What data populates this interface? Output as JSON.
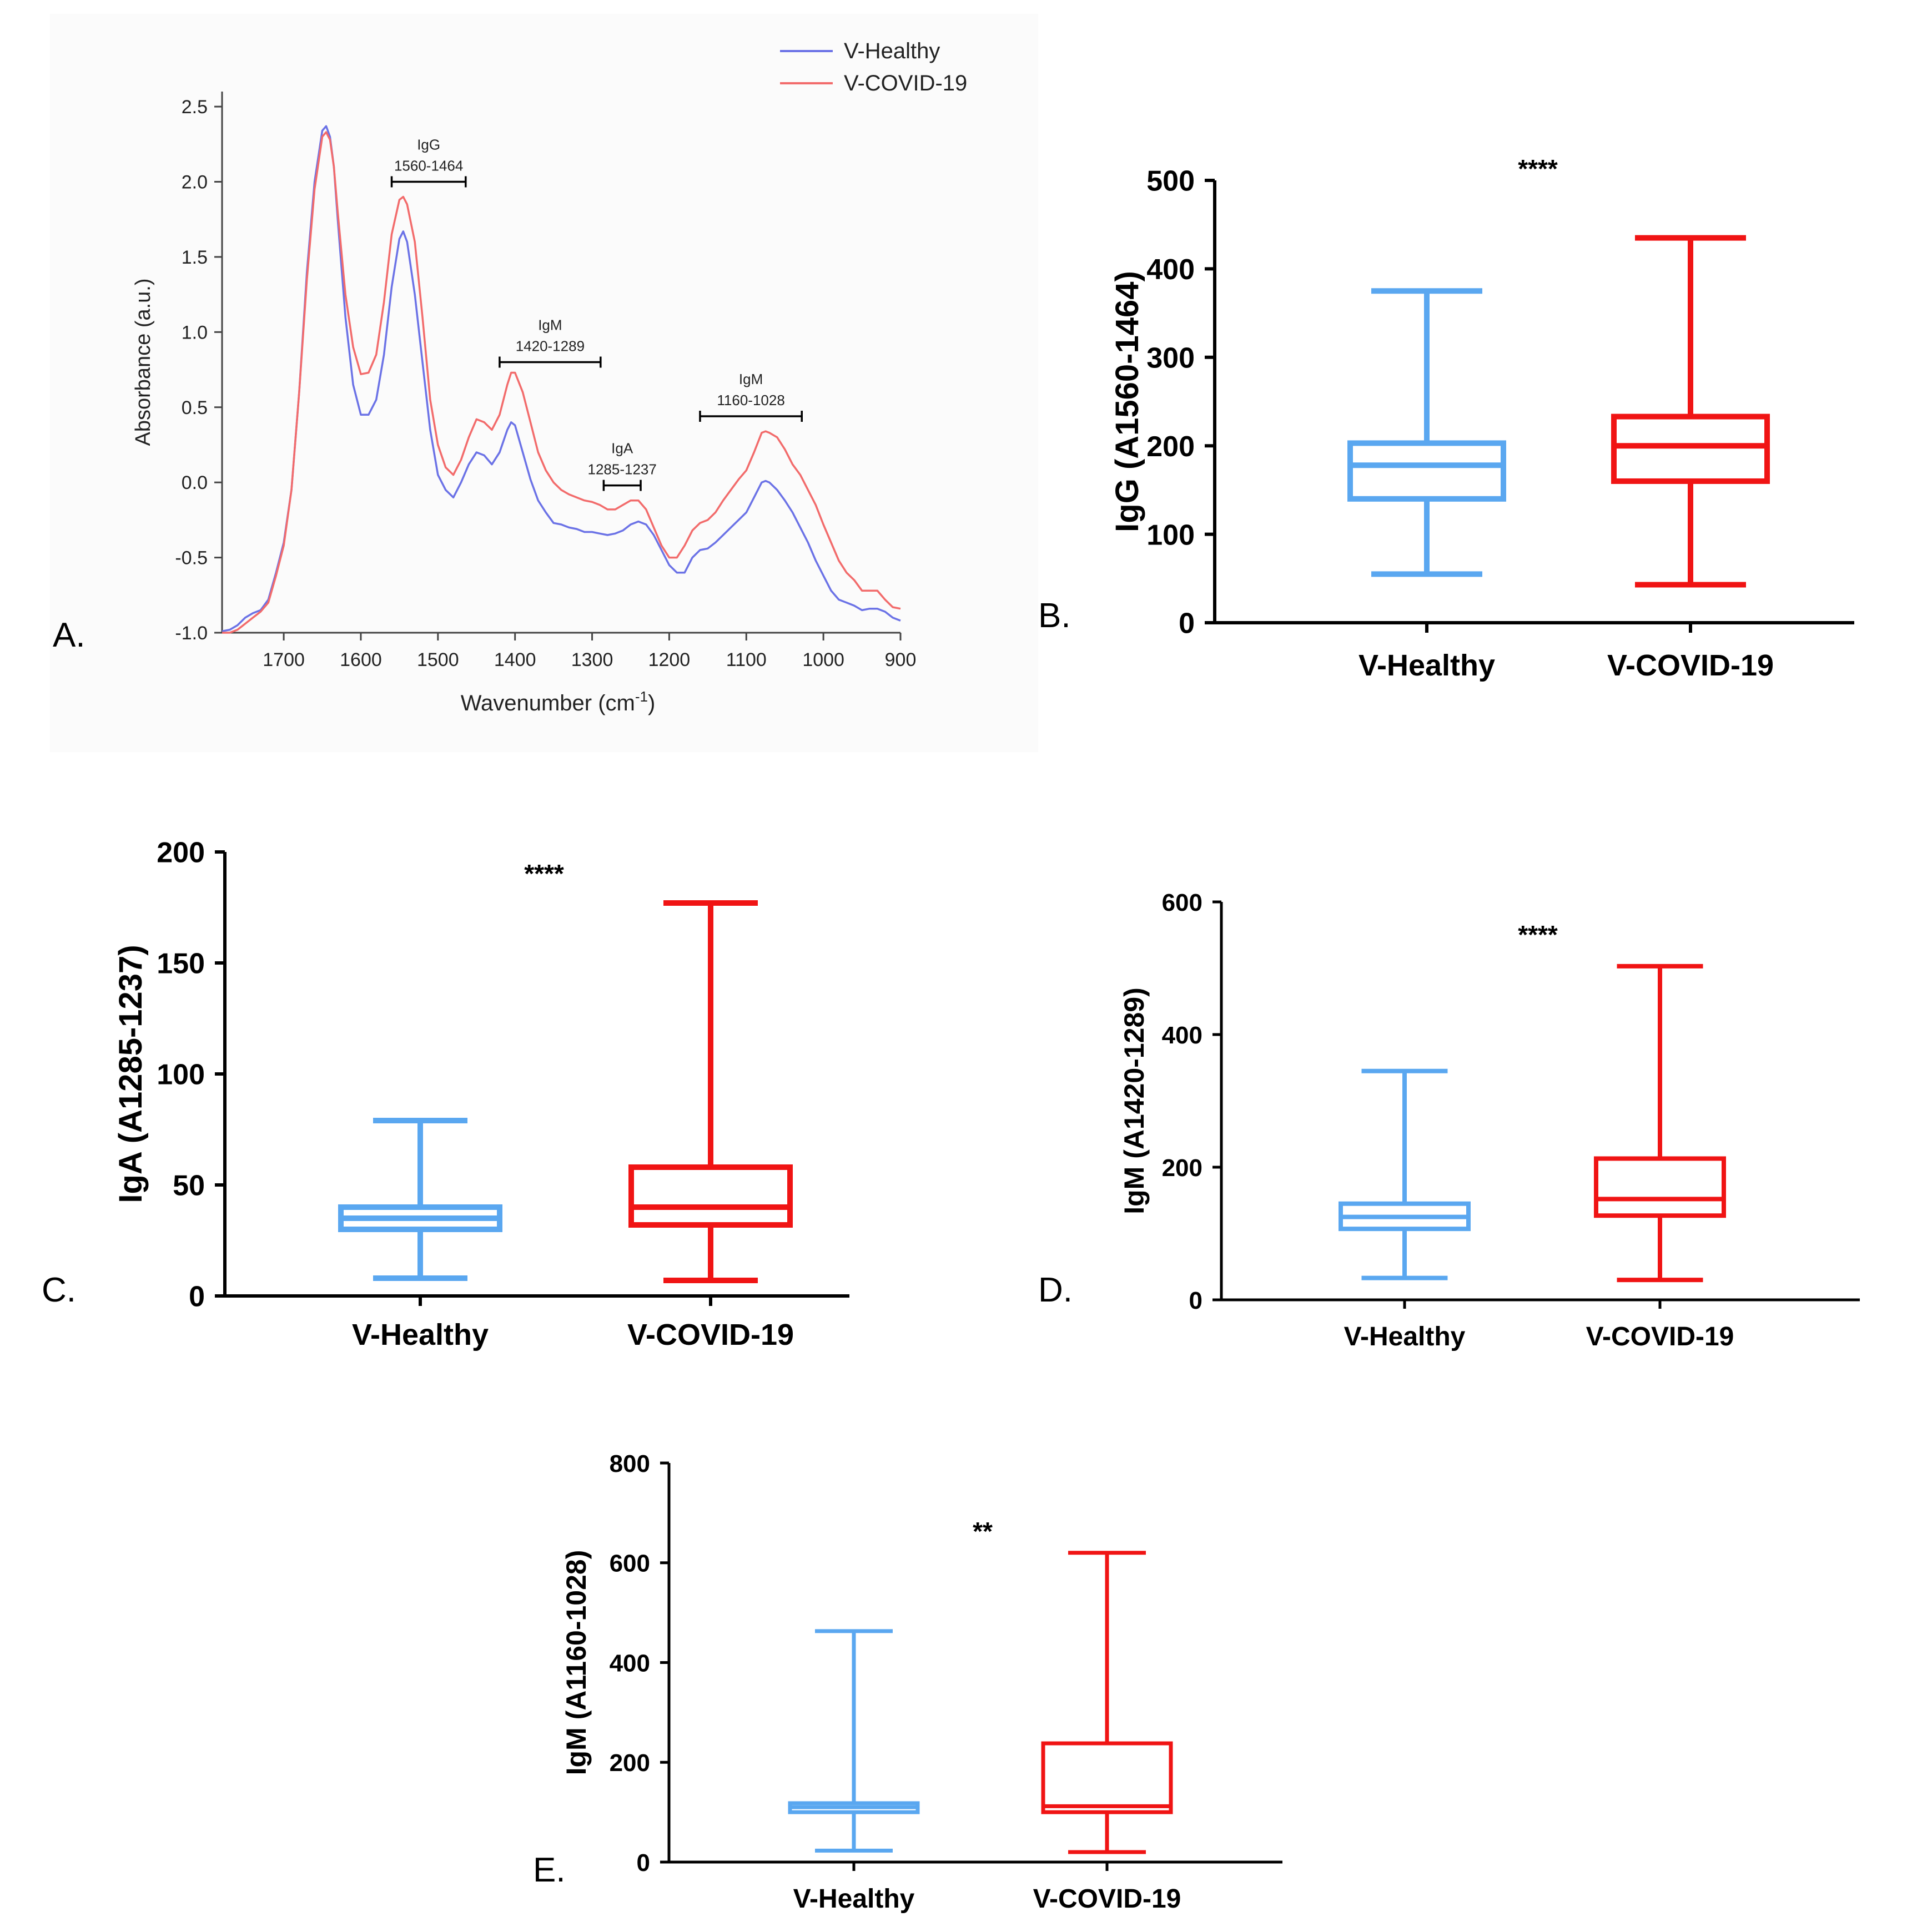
{
  "colors": {
    "healthy_line": "#6b72e6",
    "covid_line": "#f26b6b",
    "healthy_box": "#5aa7f0",
    "covid_box": "#f01414",
    "axis": "#000000",
    "panelA_axis": "#444444"
  },
  "chart_data": [
    {
      "panel": "A.",
      "type": "line",
      "title": "",
      "xlabel": "Wavenumber (cm",
      "xlabel_sup": "-1",
      "xlabel_close": ")",
      "ylabel": "Absorbance (a.u.)",
      "xlim": [
        1780,
        900
      ],
      "ylim": [
        -1.0,
        2.6
      ],
      "x_ticks": [
        1700,
        1600,
        1500,
        1400,
        1300,
        1200,
        1100,
        1000,
        900
      ],
      "y_ticks": [
        -1.0,
        -0.5,
        0.0,
        0.5,
        1.0,
        1.5,
        2.0,
        2.5
      ],
      "x_tick_labels": [
        "1700",
        "1600",
        "1500",
        "1400",
        "1300",
        "1200",
        "1100",
        "1000",
        "900"
      ],
      "y_tick_labels": [
        "-1.0",
        "-0.5",
        "0.0",
        "0.5",
        "1.0",
        "1.5",
        "2.0",
        "2.5"
      ],
      "legend": [
        "V-Healthy",
        "V-COVID-19"
      ],
      "legend_position": "top-right",
      "series": [
        {
          "name": "V-Healthy",
          "x": [
            1780,
            1770,
            1760,
            1750,
            1740,
            1730,
            1720,
            1710,
            1700,
            1690,
            1680,
            1670,
            1660,
            1650,
            1645,
            1640,
            1635,
            1630,
            1620,
            1610,
            1600,
            1590,
            1580,
            1570,
            1560,
            1550,
            1545,
            1540,
            1530,
            1520,
            1510,
            1500,
            1490,
            1480,
            1470,
            1460,
            1450,
            1440,
            1430,
            1420,
            1410,
            1405,
            1400,
            1390,
            1380,
            1370,
            1360,
            1350,
            1340,
            1330,
            1320,
            1310,
            1300,
            1290,
            1280,
            1270,
            1260,
            1250,
            1240,
            1230,
            1220,
            1210,
            1200,
            1190,
            1180,
            1170,
            1160,
            1150,
            1140,
            1130,
            1120,
            1110,
            1100,
            1090,
            1080,
            1075,
            1070,
            1060,
            1050,
            1040,
            1030,
            1020,
            1010,
            1000,
            990,
            980,
            970,
            960,
            950,
            940,
            930,
            920,
            910,
            900
          ],
          "y": [
            -0.99,
            -0.98,
            -0.95,
            -0.9,
            -0.87,
            -0.85,
            -0.78,
            -0.6,
            -0.4,
            -0.05,
            0.6,
            1.4,
            2.0,
            2.34,
            2.37,
            2.3,
            2.1,
            1.75,
            1.1,
            0.65,
            0.45,
            0.45,
            0.55,
            0.85,
            1.3,
            1.62,
            1.67,
            1.6,
            1.25,
            0.8,
            0.35,
            0.05,
            -0.05,
            -0.1,
            0.0,
            0.12,
            0.2,
            0.18,
            0.12,
            0.2,
            0.35,
            0.4,
            0.38,
            0.2,
            0.02,
            -0.12,
            -0.2,
            -0.27,
            -0.28,
            -0.3,
            -0.31,
            -0.33,
            -0.33,
            -0.34,
            -0.35,
            -0.34,
            -0.32,
            -0.28,
            -0.26,
            -0.28,
            -0.35,
            -0.45,
            -0.55,
            -0.6,
            -0.6,
            -0.5,
            -0.45,
            -0.44,
            -0.4,
            -0.35,
            -0.3,
            -0.25,
            -0.2,
            -0.1,
            0.0,
            0.01,
            0.0,
            -0.05,
            -0.12,
            -0.2,
            -0.3,
            -0.4,
            -0.52,
            -0.62,
            -0.72,
            -0.78,
            -0.8,
            -0.82,
            -0.85,
            -0.84,
            -0.84,
            -0.86,
            -0.9,
            -0.92
          ]
        },
        {
          "name": "V-COVID-19",
          "x": [
            1780,
            1770,
            1760,
            1750,
            1740,
            1730,
            1720,
            1710,
            1700,
            1690,
            1680,
            1670,
            1660,
            1650,
            1645,
            1640,
            1635,
            1630,
            1620,
            1610,
            1600,
            1590,
            1580,
            1570,
            1560,
            1550,
            1545,
            1540,
            1530,
            1520,
            1510,
            1500,
            1490,
            1480,
            1470,
            1460,
            1450,
            1440,
            1430,
            1420,
            1410,
            1405,
            1400,
            1390,
            1380,
            1370,
            1360,
            1350,
            1340,
            1330,
            1320,
            1310,
            1300,
            1290,
            1280,
            1270,
            1260,
            1250,
            1240,
            1230,
            1220,
            1210,
            1200,
            1190,
            1180,
            1170,
            1160,
            1150,
            1140,
            1130,
            1120,
            1110,
            1100,
            1090,
            1080,
            1075,
            1070,
            1060,
            1050,
            1040,
            1030,
            1020,
            1010,
            1000,
            990,
            980,
            970,
            960,
            950,
            940,
            930,
            920,
            910,
            900
          ],
          "y": [
            -1.0,
            -1.0,
            -0.98,
            -0.94,
            -0.9,
            -0.86,
            -0.8,
            -0.62,
            -0.42,
            -0.05,
            0.6,
            1.35,
            1.95,
            2.3,
            2.33,
            2.28,
            2.1,
            1.8,
            1.25,
            0.9,
            0.72,
            0.73,
            0.85,
            1.2,
            1.65,
            1.88,
            1.9,
            1.85,
            1.6,
            1.1,
            0.55,
            0.25,
            0.1,
            0.05,
            0.15,
            0.3,
            0.42,
            0.4,
            0.35,
            0.45,
            0.65,
            0.73,
            0.73,
            0.6,
            0.4,
            0.2,
            0.08,
            0.0,
            -0.05,
            -0.08,
            -0.1,
            -0.12,
            -0.13,
            -0.15,
            -0.18,
            -0.18,
            -0.15,
            -0.12,
            -0.12,
            -0.18,
            -0.3,
            -0.42,
            -0.5,
            -0.5,
            -0.42,
            -0.32,
            -0.27,
            -0.25,
            -0.2,
            -0.12,
            -0.05,
            0.02,
            0.08,
            0.2,
            0.33,
            0.34,
            0.33,
            0.3,
            0.22,
            0.12,
            0.05,
            -0.05,
            -0.15,
            -0.28,
            -0.4,
            -0.52,
            -0.6,
            -0.65,
            -0.72,
            -0.72,
            -0.72,
            -0.78,
            -0.83,
            -0.84
          ]
        }
      ],
      "annotations": [
        {
          "label": "IgG",
          "range": "1560-1464",
          "from": 1560,
          "to": 1464,
          "y": 2.0
        },
        {
          "label": "IgM",
          "range": "1420-1289",
          "from": 1420,
          "to": 1289,
          "y": 0.8
        },
        {
          "label": "IgA",
          "range": "1285-1237",
          "from": 1285,
          "to": 1237,
          "y": -0.02
        },
        {
          "label": "IgM",
          "range": "1160-1028",
          "from": 1160,
          "to": 1028,
          "y": 0.44
        }
      ]
    },
    {
      "panel": "B.",
      "type": "box",
      "ylabel": "IgG (A1560-1464)",
      "ylim": [
        0,
        500
      ],
      "y_ticks": [
        0,
        100,
        200,
        300,
        400,
        500
      ],
      "y_tick_labels": [
        "0",
        "100",
        "200",
        "300",
        "400",
        "500"
      ],
      "categories": [
        "V-Healthy",
        "V-COVID-19"
      ],
      "significance": "****",
      "boxes": [
        {
          "name": "V-Healthy",
          "min": 55,
          "q1": 140,
          "median": 178,
          "q3": 203,
          "max": 375
        },
        {
          "name": "V-COVID-19",
          "min": 43,
          "q1": 160,
          "median": 200,
          "q3": 233,
          "max": 435
        }
      ]
    },
    {
      "panel": "C.",
      "type": "box",
      "ylabel": "IgA (A1285-1237)",
      "ylim": [
        0,
        200
      ],
      "y_ticks": [
        0,
        50,
        100,
        150,
        200
      ],
      "y_tick_labels": [
        "0",
        "50",
        "100",
        "150",
        "200"
      ],
      "categories": [
        "V-Healthy",
        "V-COVID-19"
      ],
      "significance": "****",
      "boxes": [
        {
          "name": "V-Healthy",
          "min": 8,
          "q1": 30,
          "median": 35,
          "q3": 40,
          "max": 79
        },
        {
          "name": "V-COVID-19",
          "min": 7,
          "q1": 32,
          "median": 40,
          "q3": 58,
          "max": 177
        }
      ]
    },
    {
      "panel": "D.",
      "type": "box",
      "ylabel": "IgM (A1420-1289)",
      "ylim": [
        0,
        600
      ],
      "y_ticks": [
        0,
        200,
        400,
        600
      ],
      "y_tick_labels": [
        "0",
        "200",
        "400",
        "600"
      ],
      "categories": [
        "V-Healthy",
        "V-COVID-19"
      ],
      "significance": "****",
      "boxes": [
        {
          "name": "V-Healthy",
          "min": 33,
          "q1": 107,
          "median": 125,
          "q3": 145,
          "max": 345
        },
        {
          "name": "V-COVID-19",
          "min": 30,
          "q1": 127,
          "median": 152,
          "q3": 213,
          "max": 503
        }
      ]
    },
    {
      "panel": "E.",
      "type": "box",
      "ylabel": "IgM (A1160-1028)",
      "ylim": [
        0,
        800
      ],
      "y_ticks": [
        0,
        200,
        400,
        600,
        800
      ],
      "y_tick_labels": [
        "0",
        "200",
        "400",
        "600",
        "800"
      ],
      "categories": [
        "V-Healthy",
        "V-COVID-19"
      ],
      "significance": "**",
      "boxes": [
        {
          "name": "V-Healthy",
          "min": 23,
          "q1": 100,
          "median": 110,
          "q3": 118,
          "max": 463
        },
        {
          "name": "V-COVID-19",
          "min": 20,
          "q1": 100,
          "median": 112,
          "q3": 238,
          "max": 620
        }
      ]
    }
  ]
}
